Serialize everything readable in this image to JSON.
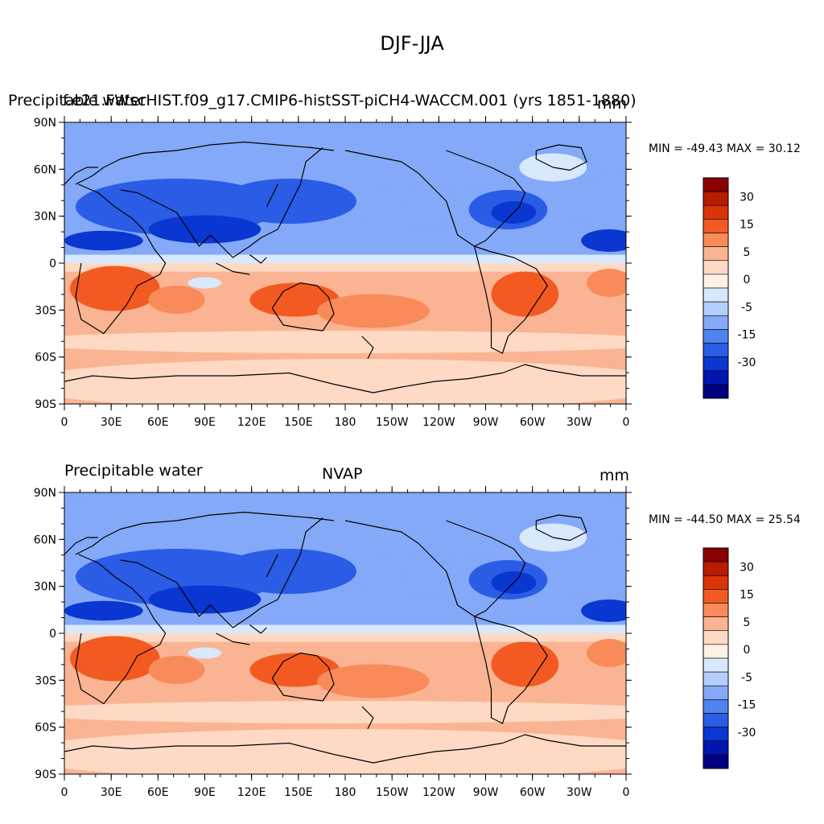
{
  "title": "DJF-JJA",
  "panels": [
    {
      "left_label": "Precipitable water",
      "center_label": "f.e21.FWscHIST.f09_g17.CMIP6-histSST-piCH4-WACCM.001 (yrs 1851-1880)",
      "units": "mm",
      "min_max": "MIN = -49.43 MAX =  30.12"
    },
    {
      "left_label": "Precipitable water",
      "center_label": "NVAP",
      "units": "mm",
      "min_max": "MIN = -44.50 MAX =  25.54"
    }
  ],
  "lat_ticks": [
    "90N",
    "60N",
    "30N",
    "0",
    "30S",
    "60S",
    "90S"
  ],
  "lon_ticks": [
    "0",
    "30E",
    "60E",
    "90E",
    "120E",
    "150E",
    "180",
    "150W",
    "120W",
    "90W",
    "60W",
    "30W",
    "0"
  ],
  "colorbar": {
    "labels": [
      "30",
      "15",
      "5",
      "0",
      "-5",
      "-15",
      "-30"
    ],
    "colors": [
      "#8b0000",
      "#b71c00",
      "#d93408",
      "#f25a22",
      "#f98a5a",
      "#fbb493",
      "#fedac4",
      "#fff1e4",
      "#d8e8fd",
      "#b4cffd",
      "#84a9f8",
      "#5083f0",
      "#2a5ce6",
      "#0a36d1",
      "#0016ae",
      "#000080"
    ]
  },
  "colors": {
    "strong_neg": "#0a36d1",
    "mid_neg": "#2a5ce6",
    "light_neg": "#84a9f8",
    "pale_neg": "#d8e8fd",
    "pale_pos": "#fedac4",
    "light_pos": "#fbb493",
    "mid_pos": "#f98a5a",
    "strong_pos": "#f25a22",
    "coast": "#000000"
  }
}
